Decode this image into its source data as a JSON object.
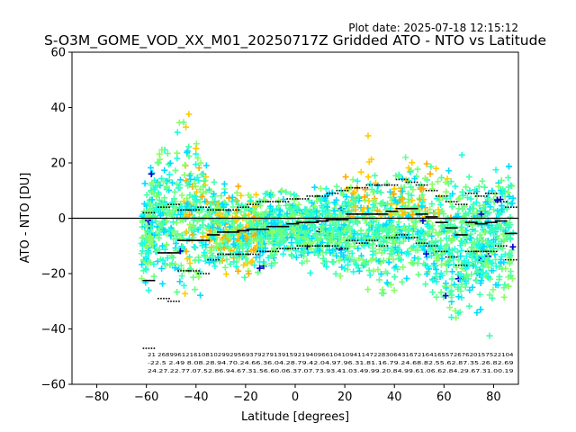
{
  "chart_data": {
    "type": "scatter",
    "title": "S-O3M_GOME_VOD_XX_M01_20250717Z Gridded ATO - NTO vs Latitude",
    "subtitle": "Plot date: 2025-07-18 12:15:12",
    "xlabel": "Latitude [degrees]",
    "ylabel": "ATO - NTO [DU]",
    "xlim": [
      -90,
      90
    ],
    "ylim": [
      -60,
      60
    ],
    "xticks": [
      -80,
      -60,
      -40,
      -20,
      0,
      20,
      40,
      60,
      80
    ],
    "yticks": [
      -60,
      -40,
      -20,
      0,
      20,
      40,
      60
    ],
    "xtick_labels": [
      "−80",
      "−60",
      "−40",
      "−20",
      "0",
      "20",
      "40",
      "60",
      "80"
    ],
    "ytick_labels": [
      "−60",
      "−40",
      "−20",
      "0",
      "20",
      "40",
      "60"
    ],
    "grid": false,
    "zero_line": 0,
    "point_colors": [
      "#00ddff",
      "#1affe0",
      "#66ff88",
      "#88ff66",
      "#44ffaa",
      "#ffcc00",
      "#ffaa00",
      "#0000cc"
    ],
    "band": {
      "lat": [
        -60,
        -55,
        -50,
        -45,
        -40,
        -35,
        -30,
        -25,
        -20,
        -15,
        -10,
        -5,
        0,
        5,
        10,
        15,
        20,
        25,
        30,
        35,
        40,
        45,
        50,
        55,
        60,
        65,
        70,
        75,
        80,
        85,
        88
      ],
      "center": [
        -5,
        3,
        2,
        1,
        2,
        0,
        -3,
        -4,
        -6,
        -5,
        -4,
        -3,
        -3,
        -5,
        -3,
        -4,
        -5,
        -3,
        -2,
        -6,
        -5,
        1,
        -1,
        -5,
        -8,
        -10,
        -9,
        -7,
        -8,
        -6,
        -5
      ],
      "spread": [
        14,
        20,
        24,
        27,
        22,
        14,
        13,
        13,
        12,
        12,
        12,
        11,
        11,
        11,
        11,
        12,
        14,
        18,
        20,
        18,
        17,
        18,
        18,
        19,
        22,
        22,
        21,
        21,
        21,
        20,
        19
      ]
    },
    "mean": {
      "lat": [
        -59,
        -53,
        -49,
        -45,
        -41,
        -37,
        -33,
        -29,
        -25,
        -21,
        -17,
        -13,
        -9,
        -5,
        -1,
        3,
        7,
        11,
        15,
        19,
        23,
        27,
        31,
        35,
        39,
        43,
        47,
        51,
        55,
        59,
        63,
        67,
        71,
        75,
        79,
        83,
        87
      ],
      "values": [
        -22.5,
        -12.5,
        -12.5,
        -8,
        -8,
        -8,
        -6,
        -5,
        -5,
        -4.5,
        -4,
        -4,
        -3,
        -3,
        -2,
        -1.5,
        -1.5,
        -1,
        -0.5,
        -0.5,
        1.5,
        1.5,
        1.5,
        1.5,
        2.5,
        3.5,
        3.5,
        1.5,
        0.5,
        -1.5,
        -3.5,
        -6,
        -1.5,
        -2,
        -1.5,
        -1,
        -5.5
      ]
    },
    "std_upper": {
      "lat": [
        -59,
        -53,
        -49,
        -45,
        -41,
        -37,
        -33,
        -29,
        -25,
        -21,
        -17,
        -13,
        -9,
        -5,
        -1,
        3,
        7,
        11,
        15,
        19,
        23,
        27,
        31,
        35,
        39,
        43,
        47,
        51,
        55,
        59,
        63,
        67,
        71,
        75,
        79,
        83,
        87
      ],
      "values": [
        2,
        4,
        5,
        3,
        3,
        4,
        3,
        3,
        3,
        4,
        5,
        6,
        6,
        6,
        7,
        7,
        8,
        8,
        9,
        10,
        11,
        11,
        12,
        12,
        12,
        14,
        13,
        12,
        10,
        8,
        6,
        5,
        9,
        8,
        9,
        6,
        4
      ]
    },
    "std_lower": {
      "lat": [
        -59,
        -53,
        -49,
        -45,
        -41,
        -37,
        -33,
        -29,
        -25,
        -21,
        -17,
        -13,
        -9,
        -5,
        -1,
        3,
        7,
        11,
        15,
        19,
        23,
        27,
        31,
        35,
        39,
        43,
        47,
        51,
        55,
        59,
        63,
        67,
        71,
        75,
        79,
        83,
        87
      ],
      "values": [
        -47,
        -29,
        -30,
        -19,
        -19,
        -20,
        -15,
        -13,
        -13,
        -13,
        -13,
        -12,
        -12,
        -11,
        -11,
        -10,
        -10,
        -10,
        -10,
        -11,
        -8,
        -9,
        -8,
        -10,
        -7,
        -6,
        -7,
        -9,
        -10,
        -12,
        -14,
        -17,
        -12,
        -12,
        -12,
        -10,
        -15
      ]
    },
    "annotation_rows": [
      "21 26899612161081029929569379279139159219409661041094114722830643167216416557267620157522104",
      "-22.5 2.49 8.08.28.94.70.24.66.36.04.28.79.42.04.97.96.31.81.16.79.24.68.82.55.62.87.35.26.82.69",
      "24.27.22.77.07.52.86.94.67.31.56.60.06.37.07.73.93.41.03.49.99.20.84.99.61.06.62.84.29.67.31.00.19"
    ]
  }
}
